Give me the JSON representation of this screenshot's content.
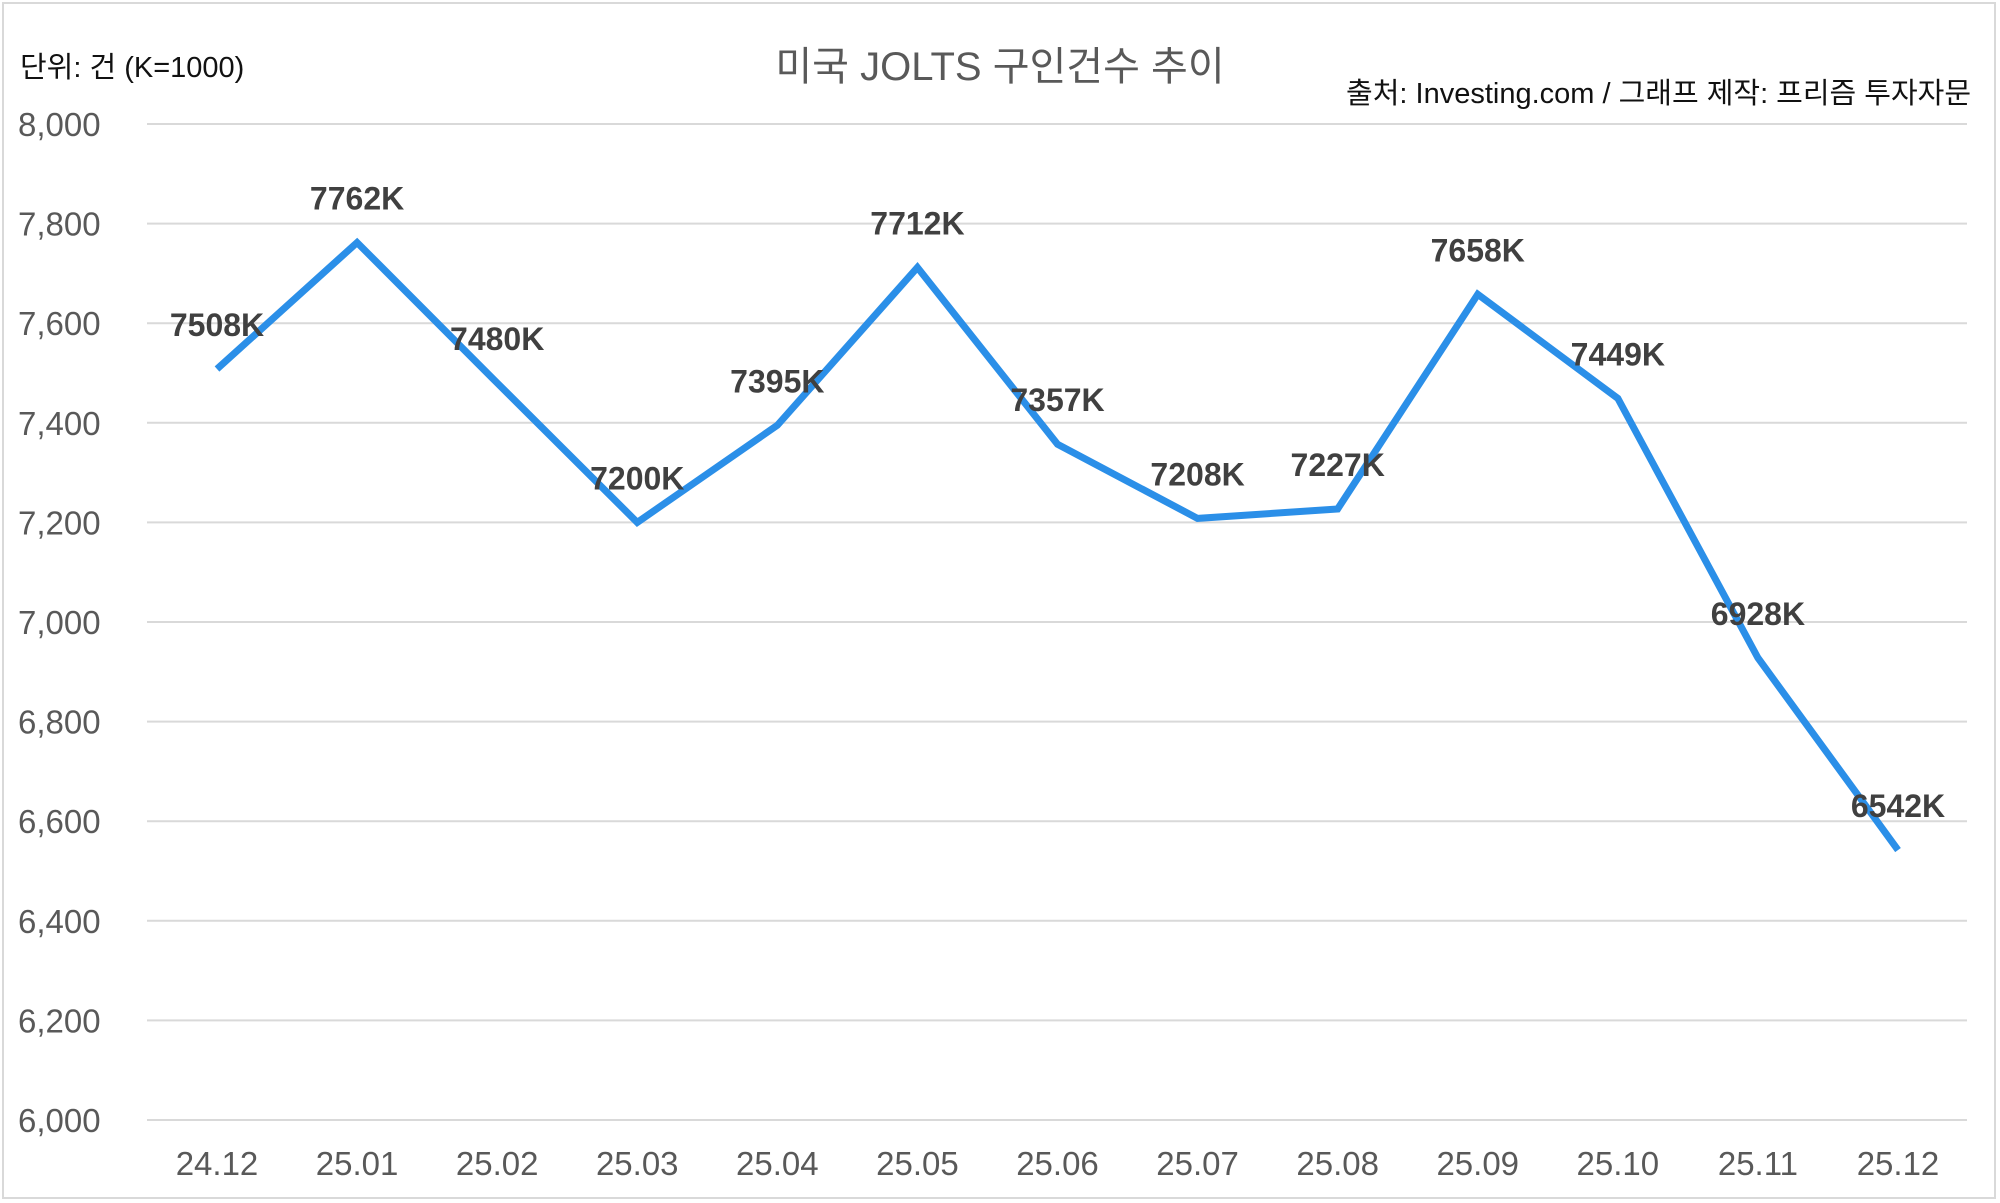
{
  "chart_data": {
    "type": "line",
    "title": "미국 JOLTS 구인건수 추이",
    "unit_note": "단위: 건 (K=1000)",
    "source_note": "출처: Investing.com / 그래프 제작: 프리즘 투자자문",
    "categories": [
      "24.12",
      "25.01",
      "25.02",
      "25.03",
      "25.04",
      "25.05",
      "25.06",
      "25.07",
      "25.08",
      "25.09",
      "25.10",
      "25.11",
      "25.12"
    ],
    "series": [
      {
        "name": "JOLTS",
        "values": [
          7508,
          7762,
          7480,
          7200,
          7395,
          7712,
          7357,
          7208,
          7227,
          7658,
          7449,
          6928,
          6542
        ]
      }
    ],
    "data_labels": [
      "7508K",
      "7762K",
      "7480K",
      "7200K",
      "7395K",
      "7712K",
      "7357K",
      "7208K",
      "7227K",
      "7658K",
      "7449K",
      "6928K",
      "6542K"
    ],
    "ylim": [
      6000,
      8000
    ],
    "yticks": [
      "6,000",
      "6,200",
      "6,400",
      "6,600",
      "6,800",
      "7,000",
      "7,200",
      "7,400",
      "7,600",
      "7,800",
      "8,000"
    ],
    "ytick_values": [
      6000,
      6200,
      6400,
      6600,
      6800,
      7000,
      7200,
      7400,
      7600,
      7800,
      8000
    ],
    "grid": true,
    "xlabel": "",
    "ylabel": "",
    "line_color": "#2b8fe8"
  }
}
